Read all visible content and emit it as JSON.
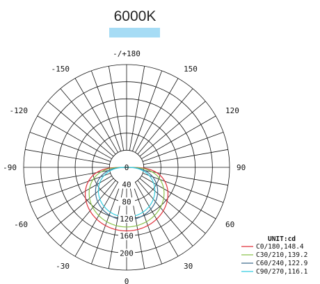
{
  "page": {
    "title": "6000K",
    "accent_color": "#a6dcf5"
  },
  "chart_data": {
    "type": "polar",
    "title": "6000K",
    "angle_labels": [
      "-/+180",
      "150",
      "-150",
      "120",
      "-120",
      "90",
      "-90",
      "60",
      "-60",
      "30",
      "-30",
      "0"
    ],
    "radial_ticks": [
      40,
      80,
      120,
      160,
      200
    ],
    "r_max": 240,
    "angle_step_deg": 10,
    "unit_label": "UNIT:cd",
    "series": [
      {
        "name": "C0/180,148.4",
        "color": "#e0303a",
        "peak": 148.4,
        "shape_exp": 0.42
      },
      {
        "name": "C30/210,139.2",
        "color": "#8ac24a",
        "peak": 139.2,
        "shape_exp": 0.48
      },
      {
        "name": "C60/240,122.9",
        "color": "#3f6b8c",
        "peak": 122.9,
        "shape_exp": 0.6
      },
      {
        "name": "C90/270,116.1",
        "color": "#33cce0",
        "peak": 116.1,
        "shape_exp": 0.68
      }
    ]
  }
}
